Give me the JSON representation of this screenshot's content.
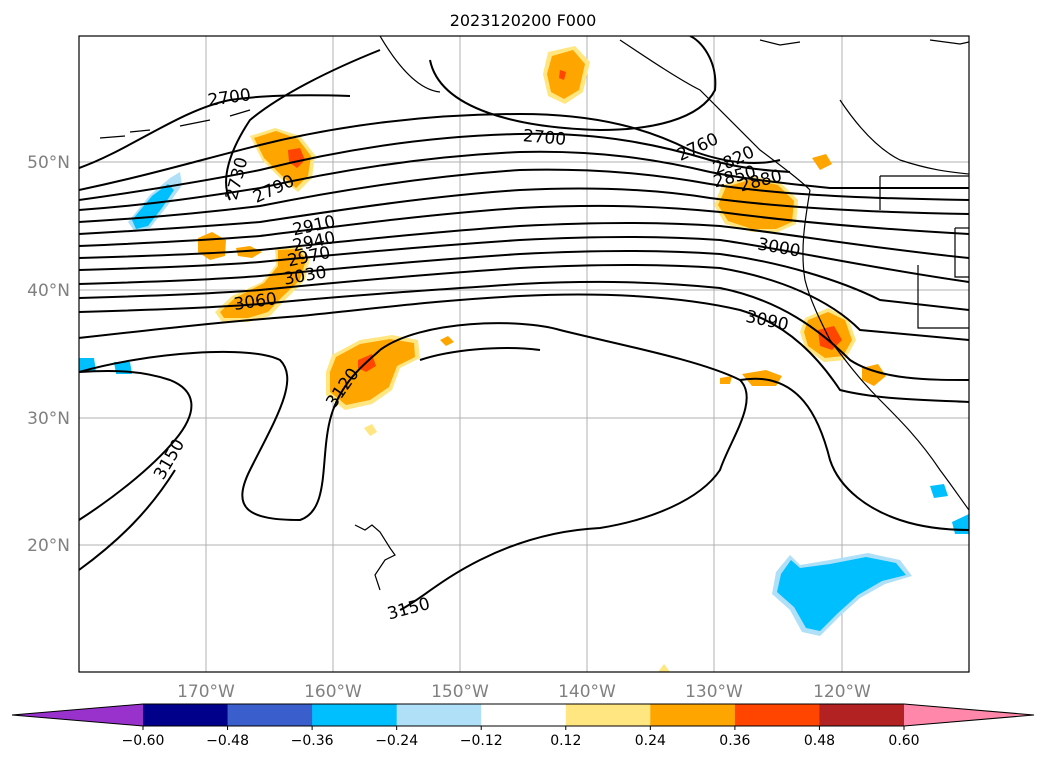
{
  "title": "2023120200 F000",
  "lat_labels": [
    "50°N",
    "40°N",
    "30°N",
    "20°N"
  ],
  "lon_labels": [
    "170°W",
    "160°W",
    "150°W",
    "140°W",
    "130°W",
    "120°W"
  ],
  "contour_labels": [
    "2700",
    "2700",
    "2730",
    "2790",
    "2760",
    "2820",
    "2850",
    "2880",
    "2910",
    "2940",
    "2970",
    "3000",
    "3030",
    "3060",
    "3090",
    "3120",
    "3150",
    "3150"
  ],
  "colorbar": {
    "ticks": [
      "−0.60",
      "−0.48",
      "−0.36",
      "−0.24",
      "−0.12",
      "0.12",
      "0.24",
      "0.36",
      "0.48",
      "0.60"
    ],
    "colors": [
      "#9932cc",
      "#00008b",
      "#3a5fcd",
      "#00bfff",
      "#afe0f7",
      "#ffffff",
      "#ffe680",
      "#ffa500",
      "#ff4500",
      "#b22222",
      "#ff88aa"
    ]
  },
  "colors": {
    "grid": "#b0b0b0",
    "contour": "#000000",
    "coast": "#000000"
  }
}
